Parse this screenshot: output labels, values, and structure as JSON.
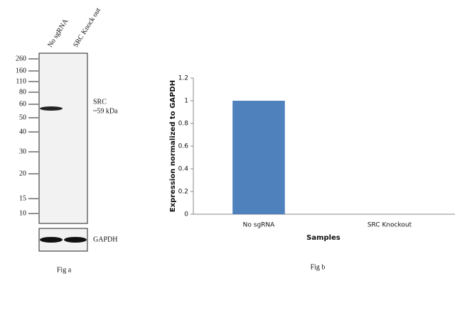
{
  "blot": {
    "lanes": [
      "No sgRNA",
      "SRC Knock out"
    ],
    "markers": [
      "260",
      "160",
      "110",
      "80",
      "60",
      "50",
      "40",
      "30",
      "20",
      "15",
      "10"
    ],
    "band_name": "SRC",
    "band_size": "~59 kDa",
    "control": "GAPDH",
    "caption": "Fig a"
  },
  "chart_data": {
    "type": "bar",
    "categories": [
      "No sgRNA",
      "SRC Knockout"
    ],
    "values": [
      1,
      0
    ],
    "color": "#4f81bd",
    "ylim": [
      0,
      1.2
    ],
    "yticks": [
      0,
      0.2,
      0.4,
      0.6,
      0.8,
      1,
      1.2
    ],
    "xlabel": "Samples",
    "ylabel": "Expression normalized to GAPDH",
    "caption": "Fig b"
  }
}
